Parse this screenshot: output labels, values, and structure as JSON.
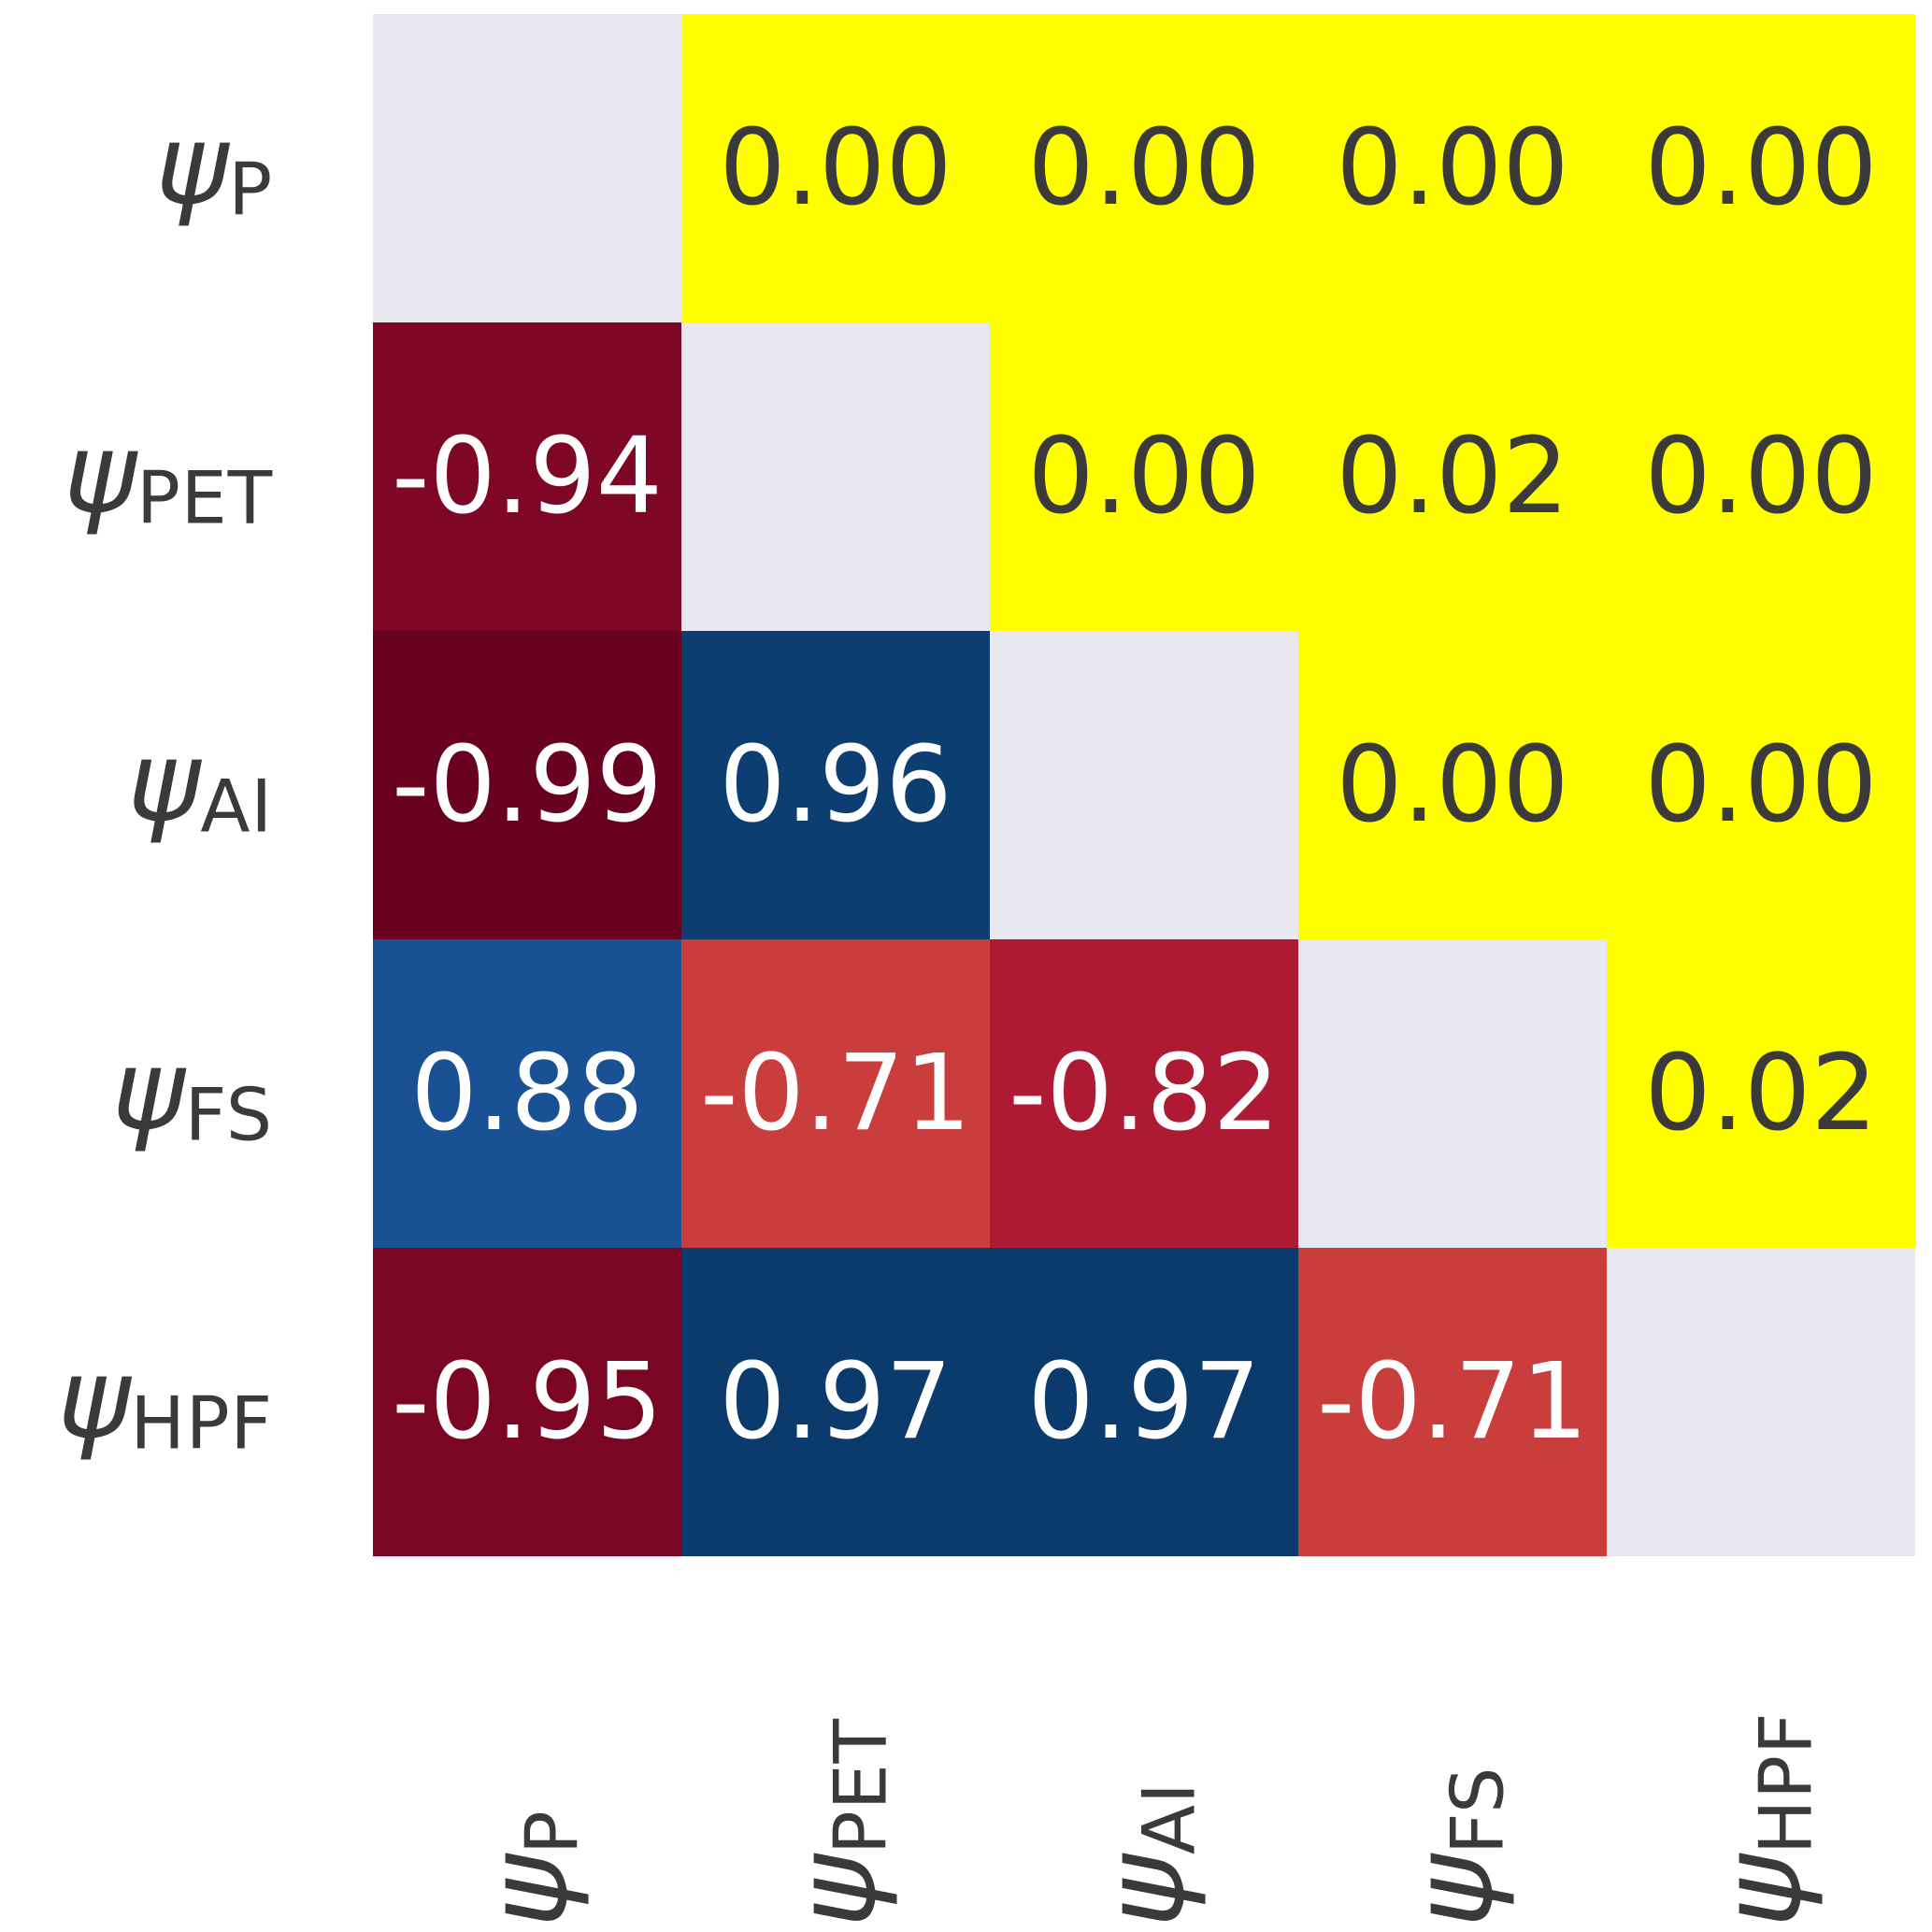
{
  "figure": {
    "background_color": "#ffffff",
    "tick_label_color": "#3a3a3a",
    "correlation_text_color": "#ffffff",
    "pvalue_text_color": "#3a3a3a",
    "diagonal_color": "#e8e8f1",
    "pvalue_cell_color": "#ffff00"
  },
  "chart_data": {
    "type": "heatmap",
    "title": "",
    "description_visible": "",
    "variables": [
      {
        "base": "ψ",
        "sub": "P"
      },
      {
        "base": "ψ",
        "sub": "PET"
      },
      {
        "base": "ψ",
        "sub": "AI"
      },
      {
        "base": "ψ",
        "sub": "FS"
      },
      {
        "base": "ψ",
        "sub": "HPF"
      }
    ],
    "y_tick_labels": [
      "ψ_P",
      "ψ_PET",
      "ψ_AI",
      "ψ_FS",
      "ψ_HPF"
    ],
    "x_tick_labels": [
      "ψ_P",
      "ψ_PET",
      "ψ_AI",
      "ψ_FS",
      "ψ_HPF"
    ],
    "lower_triangle_correlations": [
      [
        null,
        null,
        null,
        null,
        null
      ],
      [
        -0.94,
        null,
        null,
        null,
        null
      ],
      [
        -0.99,
        0.96,
        null,
        null,
        null
      ],
      [
        0.88,
        -0.71,
        -0.82,
        null,
        null
      ],
      [
        -0.95,
        0.97,
        0.97,
        -0.71,
        null
      ]
    ],
    "upper_triangle_p_values": [
      [
        null,
        0.0,
        0.0,
        0.0,
        0.0
      ],
      [
        null,
        null,
        0.0,
        0.02,
        0.0
      ],
      [
        null,
        null,
        null,
        0.0,
        0.0
      ],
      [
        null,
        null,
        null,
        null,
        0.02
      ],
      [
        null,
        null,
        null,
        null,
        null
      ]
    ],
    "cells": [
      [
        {
          "text": "",
          "bg": "#e8e8f1",
          "fg": "#3a3a3a",
          "kind": "diagonal"
        },
        {
          "text": "0.00",
          "bg": "#ffff00",
          "fg": "#3a3a3a",
          "kind": "pvalue"
        },
        {
          "text": "0.00",
          "bg": "#ffff00",
          "fg": "#3a3a3a",
          "kind": "pvalue"
        },
        {
          "text": "0.00",
          "bg": "#ffff00",
          "fg": "#3a3a3a",
          "kind": "pvalue"
        },
        {
          "text": "0.00",
          "bg": "#ffff00",
          "fg": "#3a3a3a",
          "kind": "pvalue"
        }
      ],
      [
        {
          "text": "-0.94",
          "bg": "#7d0724",
          "fg": "#ffffff",
          "kind": "correlation"
        },
        {
          "text": "",
          "bg": "#e8e8f1",
          "fg": "#3a3a3a",
          "kind": "diagonal"
        },
        {
          "text": "0.00",
          "bg": "#ffff00",
          "fg": "#3a3a3a",
          "kind": "pvalue"
        },
        {
          "text": "0.02",
          "bg": "#ffff00",
          "fg": "#3a3a3a",
          "kind": "pvalue"
        },
        {
          "text": "0.00",
          "bg": "#ffff00",
          "fg": "#3a3a3a",
          "kind": "pvalue"
        }
      ],
      [
        {
          "text": "-0.99",
          "bg": "#690120",
          "fg": "#ffffff",
          "kind": "correlation"
        },
        {
          "text": "0.96",
          "bg": "#0c3e71",
          "fg": "#ffffff",
          "kind": "correlation"
        },
        {
          "text": "",
          "bg": "#e8e8f1",
          "fg": "#3a3a3a",
          "kind": "diagonal"
        },
        {
          "text": "0.00",
          "bg": "#ffff00",
          "fg": "#3a3a3a",
          "kind": "pvalue"
        },
        {
          "text": "0.00",
          "bg": "#ffff00",
          "fg": "#3a3a3a",
          "kind": "pvalue"
        }
      ],
      [
        {
          "text": "0.88",
          "bg": "#1a5094",
          "fg": "#ffffff",
          "kind": "correlation"
        },
        {
          "text": "-0.71",
          "bg": "#c93d3d",
          "fg": "#ffffff",
          "kind": "correlation"
        },
        {
          "text": "-0.82",
          "bg": "#ae1a33",
          "fg": "#ffffff",
          "kind": "correlation"
        },
        {
          "text": "",
          "bg": "#e8e8f1",
          "fg": "#3a3a3a",
          "kind": "diagonal"
        },
        {
          "text": "0.02",
          "bg": "#ffff00",
          "fg": "#3a3a3a",
          "kind": "pvalue"
        }
      ],
      [
        {
          "text": "-0.95",
          "bg": "#7a0623",
          "fg": "#ffffff",
          "kind": "correlation"
        },
        {
          "text": "0.97",
          "bg": "#0b3b6c",
          "fg": "#ffffff",
          "kind": "correlation"
        },
        {
          "text": "0.97",
          "bg": "#0b3b6c",
          "fg": "#ffffff",
          "kind": "correlation"
        },
        {
          "text": "-0.71",
          "bg": "#c93d3d",
          "fg": "#ffffff",
          "kind": "correlation"
        },
        {
          "text": "",
          "bg": "#e8e8f1",
          "fg": "#3a3a3a",
          "kind": "diagonal"
        }
      ]
    ],
    "layout_hints": {
      "grid": "5x5",
      "lower_triangle": "correlation coefficients (red-blue scale)",
      "upper_triangle": "p-values (yellow cells)",
      "legend": "none",
      "gridlines": "off"
    }
  }
}
